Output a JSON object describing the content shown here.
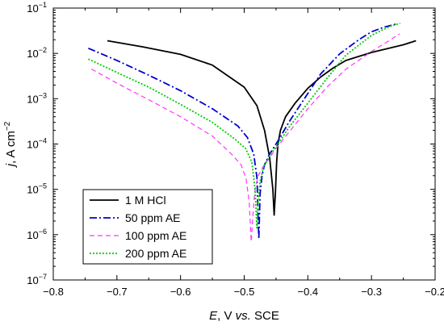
{
  "chart_data": {
    "type": "line",
    "xlabel": {
      "italic": "E",
      "rest": ", V ",
      "italic2": "vs.",
      "rest2": " SCE"
    },
    "ylabel": {
      "italic": "j",
      "rest": ", A cm",
      "sup": "−2"
    },
    "xlim": [
      -0.8,
      -0.2
    ],
    "ylim_log10": [
      -7,
      -1
    ],
    "y_scale": "log",
    "x_ticks": [
      -0.8,
      -0.7,
      -0.6,
      -0.5,
      -0.4,
      -0.3,
      -0.2
    ],
    "x_tick_labels": [
      "−0.8",
      "−0.7",
      "−0.6",
      "−0.5",
      "−0.4",
      "−0.3",
      "−0.2"
    ],
    "y_ticks_exp": [
      -7,
      -6,
      -5,
      -4,
      -3,
      -2,
      -1
    ],
    "y_tick_base": "10",
    "y_tick_exps": [
      "−7",
      "−6",
      "−5",
      "−4",
      "−3",
      "−2",
      "−1"
    ],
    "legend_position": "bottom-left",
    "series": [
      {
        "name": "1 M HCl",
        "color": "#000000",
        "dash": "",
        "width": 1.8,
        "x": [
          -0.715,
          -0.66,
          -0.6,
          -0.55,
          -0.5,
          -0.48,
          -0.468,
          -0.46,
          -0.455,
          -0.453,
          -0.451,
          -0.449,
          -0.447,
          -0.443,
          -0.435,
          -0.42,
          -0.4,
          -0.38,
          -0.36,
          -0.34,
          -0.3,
          -0.25,
          -0.23
        ],
        "y": [
          0.019,
          0.014,
          0.0095,
          0.0055,
          0.0018,
          0.0007,
          0.0002,
          5e-05,
          1e-05,
          2.7e-06,
          8e-06,
          4e-05,
          0.0001,
          0.0002,
          0.0004,
          0.0008,
          0.0017,
          0.003,
          0.0048,
          0.007,
          0.0105,
          0.0155,
          0.019
        ]
      },
      {
        "name": "50 ppm AE",
        "color": "#0000cc",
        "dash": "9,3,2,3",
        "width": 1.8,
        "x": [
          -0.745,
          -0.7,
          -0.65,
          -0.6,
          -0.55,
          -0.51,
          -0.495,
          -0.485,
          -0.48,
          -0.477,
          -0.475,
          -0.472,
          -0.468,
          -0.46,
          -0.445,
          -0.43,
          -0.4,
          -0.38,
          -0.35,
          -0.32,
          -0.3,
          -0.28,
          -0.262
        ],
        "y": [
          0.013,
          0.007,
          0.0033,
          0.0015,
          0.0006,
          0.00025,
          0.00014,
          6e-05,
          1.8e-05,
          8e-07,
          8e-06,
          2e-05,
          3.5e-05,
          6e-05,
          0.00013,
          0.0003,
          0.0013,
          0.0035,
          0.0098,
          0.02,
          0.03,
          0.038,
          0.044
        ]
      },
      {
        "name": "100 ppm AE",
        "color": "#ff33ff",
        "dash": "6,4",
        "width": 1.2,
        "x": [
          -0.74,
          -0.7,
          -0.65,
          -0.6,
          -0.55,
          -0.52,
          -0.505,
          -0.497,
          -0.492,
          -0.489,
          -0.486,
          -0.483,
          -0.478,
          -0.47,
          -0.46,
          -0.45,
          -0.43,
          -0.4,
          -0.37,
          -0.34,
          -0.3,
          -0.27,
          -0.256
        ],
        "y": [
          0.0045,
          0.0022,
          0.00095,
          0.0004,
          0.00015,
          6e-05,
          3.5e-05,
          1.7e-05,
          5e-06,
          7e-07,
          3e-06,
          1e-05,
          2e-05,
          3.2e-05,
          5e-05,
          8e-05,
          0.00018,
          0.0006,
          0.0018,
          0.0045,
          0.011,
          0.02,
          0.027
        ]
      },
      {
        "name": "200 ppm AE",
        "color": "#00cc00",
        "dash": "2,2",
        "width": 1.8,
        "x": [
          -0.745,
          -0.7,
          -0.65,
          -0.6,
          -0.55,
          -0.515,
          -0.498,
          -0.488,
          -0.483,
          -0.48,
          -0.478,
          -0.475,
          -0.47,
          -0.46,
          -0.445,
          -0.43,
          -0.4,
          -0.37,
          -0.34,
          -0.3,
          -0.27,
          -0.255
        ],
        "y": [
          0.0075,
          0.0038,
          0.0018,
          0.00075,
          0.0003,
          0.00013,
          8e-05,
          4e-05,
          1e-05,
          1.4e-06,
          6e-06,
          1.5e-05,
          3e-05,
          5.5e-05,
          0.00011,
          0.00023,
          0.0008,
          0.0028,
          0.0092,
          0.025,
          0.04,
          0.046
        ]
      }
    ]
  }
}
